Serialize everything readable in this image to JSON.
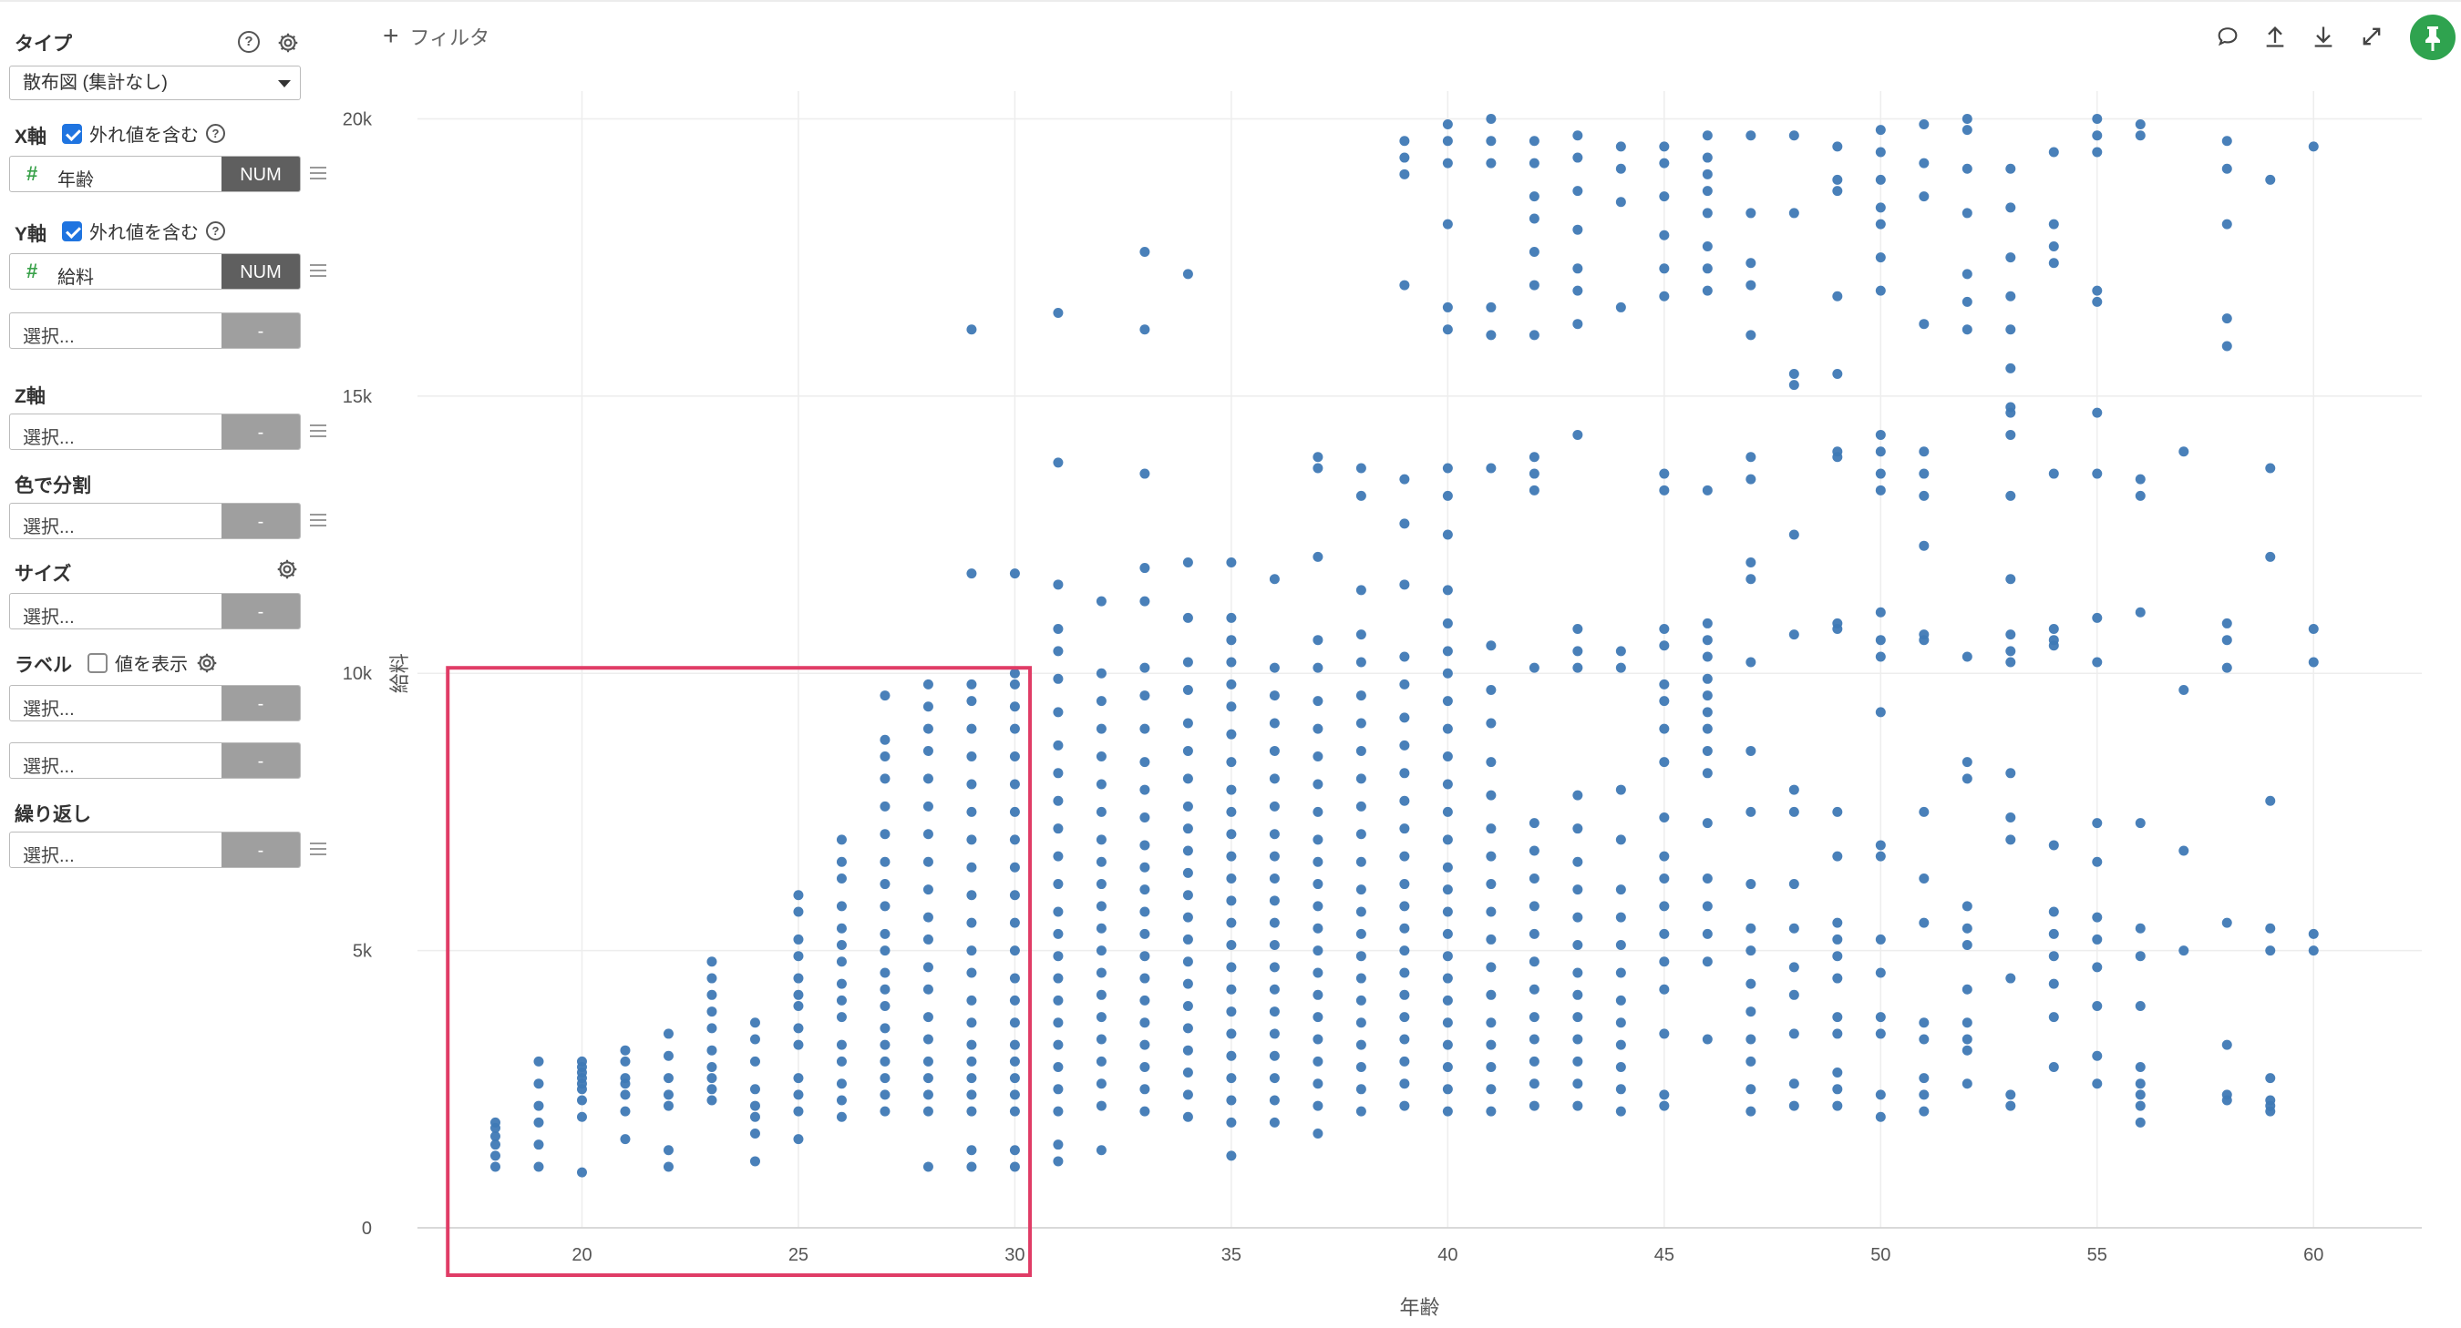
{
  "sidebar": {
    "type_section": {
      "label": "タイプ",
      "selected": "散布図 (集計なし)"
    },
    "x_axis": {
      "label": "X軸",
      "outlier_label": "外れ値を含む",
      "outlier_checked": true,
      "field_name": "年齢",
      "field_type": "NUM"
    },
    "y_axis": {
      "label": "Y軸",
      "outlier_label": "外れ値を含む",
      "outlier_checked": true,
      "field_name": "給料",
      "field_type": "NUM",
      "extra_placeholder": "選択...",
      "extra_tag": "-"
    },
    "z_axis": {
      "label": "Z軸",
      "placeholder": "選択...",
      "tag": "-"
    },
    "color_split": {
      "label": "色で分割",
      "placeholder": "選択...",
      "tag": "-"
    },
    "size": {
      "label": "サイズ",
      "placeholder": "選択...",
      "tag": "-"
    },
    "label_section": {
      "label": "ラベル",
      "show_values_label": "値を表示",
      "show_values_checked": false,
      "placeholder1": "選択...",
      "tag1": "-",
      "placeholder2": "選択...",
      "tag2": "-"
    },
    "repeat": {
      "label": "繰り返し",
      "placeholder": "選択...",
      "tag": "-"
    }
  },
  "header": {
    "filter_label": "フィルタ",
    "icons": [
      "comment-icon",
      "upload-icon",
      "download-icon",
      "expand-icon",
      "pin-icon"
    ],
    "accent_color": "#2fa34f"
  },
  "chart_data": {
    "type": "scatter",
    "xlabel": "年齢",
    "ylabel": "給料",
    "xlim": [
      16.2,
      62.5
    ],
    "ylim": [
      0,
      20500
    ],
    "x_ticks": [
      20,
      25,
      30,
      35,
      40,
      45,
      50,
      55,
      60
    ],
    "y_ticks": [
      0,
      5000,
      10000,
      15000,
      20000
    ],
    "y_tick_labels": [
      "0",
      "5k",
      "10k",
      "15k",
      "20k"
    ],
    "point_color": "#3f79b5",
    "grid": true,
    "highlight": {
      "x_range": [
        18,
        30
      ],
      "y_range": [
        0,
        10000
      ],
      "color": "#e03c66"
    },
    "series": [
      {
        "x": 18,
        "y": [
          1100,
          1300,
          1500,
          1650,
          1800,
          1900
        ]
      },
      {
        "x": 19,
        "y": [
          1100,
          1500,
          1900,
          2200,
          2600,
          3000
        ]
      },
      {
        "x": 20,
        "y": [
          1000,
          2000,
          2300,
          2500,
          2600,
          2700,
          2800,
          2900,
          3000
        ]
      },
      {
        "x": 21,
        "y": [
          1600,
          2100,
          2400,
          2600,
          2700,
          3000,
          3200
        ]
      },
      {
        "x": 22,
        "y": [
          1100,
          1400,
          2200,
          2400,
          2700,
          3100,
          3500
        ]
      },
      {
        "x": 23,
        "y": [
          2300,
          2500,
          2700,
          2900,
          3200,
          3600,
          3900,
          4200,
          4500,
          4800
        ]
      },
      {
        "x": 24,
        "y": [
          1200,
          1700,
          2000,
          2200,
          2500,
          3000,
          3400,
          3700
        ]
      },
      {
        "x": 25,
        "y": [
          1600,
          2100,
          2400,
          2700,
          3300,
          3600,
          4000,
          4200,
          4500,
          4900,
          5200,
          5700,
          6000
        ]
      },
      {
        "x": 26,
        "y": [
          2000,
          2300,
          2600,
          3000,
          3300,
          3800,
          4100,
          4400,
          4800,
          5100,
          5400,
          5800,
          6300,
          6600,
          7000
        ]
      },
      {
        "x": 27,
        "y": [
          2100,
          2400,
          2700,
          3000,
          3300,
          3600,
          4000,
          4300,
          4600,
          5000,
          5300,
          5800,
          6200,
          6600,
          7100,
          7600,
          8100,
          8500,
          8800,
          9600
        ]
      },
      {
        "x": 28,
        "y": [
          1100,
          2100,
          2400,
          2700,
          3000,
          3400,
          3800,
          4300,
          4700,
          5200,
          5600,
          6100,
          6600,
          7100,
          7600,
          8100,
          8600,
          9000,
          9400,
          9800
        ]
      },
      {
        "x": 29,
        "y": [
          1100,
          1400,
          2100,
          2400,
          2700,
          3000,
          3300,
          3700,
          4100,
          4600,
          5000,
          5500,
          6000,
          6500,
          7000,
          7500,
          8000,
          8500,
          9000,
          9500,
          9800,
          11800,
          16200
        ]
      },
      {
        "x": 30,
        "y": [
          1100,
          1400,
          2100,
          2400,
          2700,
          3000,
          3300,
          3700,
          4100,
          4500,
          5000,
          5500,
          6000,
          6500,
          7000,
          7500,
          8000,
          8500,
          9000,
          9400,
          9800,
          10000,
          11800
        ]
      },
      {
        "x": 31,
        "y": [
          1200,
          1500,
          2100,
          2500,
          2900,
          3300,
          3700,
          4100,
          4500,
          4900,
          5300,
          5700,
          6200,
          6700,
          7200,
          7700,
          8200,
          8700,
          9300,
          9900,
          10400,
          10800,
          11600,
          13800,
          16500
        ]
      },
      {
        "x": 32,
        "y": [
          1400,
          2200,
          2600,
          3000,
          3400,
          3800,
          4200,
          4600,
          5000,
          5400,
          5800,
          6200,
          6600,
          7000,
          7500,
          8000,
          8500,
          9000,
          9500,
          10000,
          11300
        ]
      },
      {
        "x": 33,
        "y": [
          2100,
          2500,
          2900,
          3300,
          3700,
          4100,
          4500,
          4900,
          5300,
          5700,
          6100,
          6500,
          6900,
          7400,
          7900,
          8400,
          9000,
          9600,
          10100,
          11300,
          11900,
          13600,
          16200,
          17600
        ]
      },
      {
        "x": 34,
        "y": [
          2000,
          2400,
          2800,
          3200,
          3600,
          4000,
          4400,
          4800,
          5200,
          5600,
          6000,
          6400,
          6800,
          7200,
          7600,
          8100,
          8600,
          9100,
          9700,
          10200,
          11000,
          12000,
          17200
        ]
      },
      {
        "x": 35,
        "y": [
          1300,
          1900,
          2300,
          2700,
          3100,
          3500,
          3900,
          4300,
          4700,
          5100,
          5500,
          5900,
          6300,
          6700,
          7100,
          7500,
          7900,
          8400,
          8900,
          9400,
          9800,
          10200,
          10600,
          11000,
          12000
        ]
      },
      {
        "x": 36,
        "y": [
          1900,
          2300,
          2700,
          3100,
          3500,
          3900,
          4300,
          4700,
          5100,
          5500,
          5900,
          6300,
          6700,
          7100,
          7600,
          8100,
          8600,
          9100,
          9600,
          10100,
          11700
        ]
      },
      {
        "x": 37,
        "y": [
          1700,
          2200,
          2600,
          3000,
          3400,
          3800,
          4200,
          4600,
          5000,
          5400,
          5800,
          6200,
          6600,
          7000,
          7500,
          8000,
          8500,
          9000,
          9500,
          10100,
          10600,
          12100,
          13700,
          13900
        ]
      },
      {
        "x": 38,
        "y": [
          2100,
          2500,
          2900,
          3300,
          3700,
          4100,
          4500,
          4900,
          5300,
          5700,
          6100,
          6600,
          7100,
          7600,
          8100,
          8600,
          9100,
          9600,
          10200,
          10700,
          11500,
          13200,
          13700
        ]
      },
      {
        "x": 39,
        "y": [
          2200,
          2600,
          3000,
          3400,
          3800,
          4200,
          4600,
          5000,
          5400,
          5800,
          6200,
          6700,
          7200,
          7700,
          8200,
          8700,
          9200,
          9800,
          10300,
          11600,
          12700,
          13500,
          17000,
          19000,
          19300,
          19600
        ]
      },
      {
        "x": 40,
        "y": [
          2100,
          2500,
          2900,
          3300,
          3700,
          4100,
          4500,
          4900,
          5300,
          5700,
          6100,
          6500,
          7000,
          7500,
          8000,
          8500,
          9000,
          9500,
          10000,
          10400,
          10900,
          11500,
          12500,
          13200,
          13700,
          16200,
          16600,
          18100,
          19200,
          19600,
          19900
        ]
      },
      {
        "x": 41,
        "y": [
          2100,
          2500,
          2900,
          3300,
          3700,
          4200,
          4700,
          5200,
          5700,
          6200,
          6700,
          7200,
          7800,
          8400,
          9100,
          9700,
          10500,
          13700,
          16100,
          16600,
          19200,
          19600,
          20000
        ]
      },
      {
        "x": 42,
        "y": [
          2200,
          2600,
          3000,
          3400,
          3800,
          4300,
          4800,
          5300,
          5800,
          6300,
          6800,
          7300,
          10100,
          13300,
          13600,
          13900,
          16100,
          17000,
          17600,
          18200,
          18600,
          19200,
          19600
        ]
      },
      {
        "x": 43,
        "y": [
          2200,
          2600,
          3000,
          3400,
          3800,
          4200,
          4600,
          5100,
          5600,
          6100,
          6600,
          7200,
          7800,
          10100,
          10400,
          10800,
          14300,
          16300,
          16900,
          17300,
          18000,
          18700,
          19300,
          19700
        ]
      },
      {
        "x": 44,
        "y": [
          2100,
          2500,
          2900,
          3300,
          3700,
          4100,
          4600,
          5100,
          5600,
          6100,
          7000,
          7900,
          10100,
          10400,
          16600,
          18500,
          19100,
          19500
        ]
      },
      {
        "x": 45,
        "y": [
          2200,
          2400,
          3500,
          4300,
          4800,
          5300,
          5800,
          6300,
          6700,
          7400,
          8400,
          9000,
          9500,
          9800,
          10500,
          10800,
          13300,
          13600,
          16800,
          17300,
          17900,
          18600,
          19200,
          19500
        ]
      },
      {
        "x": 46,
        "y": [
          3400,
          4800,
          5300,
          5800,
          6300,
          7300,
          8200,
          8600,
          9000,
          9300,
          9600,
          9900,
          10300,
          10600,
          10900,
          13300,
          16900,
          17300,
          17700,
          18300,
          18700,
          19000,
          19300,
          19700
        ]
      },
      {
        "x": 47,
        "y": [
          2100,
          2500,
          3000,
          3400,
          3900,
          4400,
          5000,
          5400,
          6200,
          7500,
          8600,
          10200,
          11700,
          12000,
          13500,
          13900,
          16100,
          17000,
          17400,
          18300,
          19700
        ]
      },
      {
        "x": 48,
        "y": [
          2200,
          2600,
          3500,
          4200,
          4700,
          5400,
          6200,
          7500,
          7900,
          10700,
          12500,
          15200,
          15400,
          18300,
          19700
        ]
      },
      {
        "x": 49,
        "y": [
          2200,
          2500,
          2800,
          3500,
          3800,
          4500,
          4900,
          5200,
          5500,
          6700,
          7500,
          10800,
          10900,
          13900,
          14000,
          15400,
          16800,
          18700,
          18900,
          19500
        ]
      },
      {
        "x": 50,
        "y": [
          2000,
          2400,
          3500,
          3800,
          4600,
          5200,
          6700,
          6900,
          9300,
          10300,
          10600,
          11100,
          13300,
          13600,
          14000,
          14300,
          16900,
          17500,
          18100,
          18400,
          18900,
          19400,
          19800
        ]
      },
      {
        "x": 51,
        "y": [
          2100,
          2400,
          2700,
          3400,
          3700,
          5500,
          6300,
          7500,
          10600,
          10700,
          12300,
          13200,
          13600,
          14000,
          16300,
          18600,
          19200,
          19900
        ]
      },
      {
        "x": 52,
        "y": [
          2600,
          3200,
          3400,
          3700,
          4300,
          5100,
          5400,
          5800,
          8100,
          8400,
          10300,
          16200,
          16700,
          17200,
          18300,
          19100,
          19800,
          20000
        ]
      },
      {
        "x": 53,
        "y": [
          2200,
          2400,
          4500,
          7000,
          7400,
          8200,
          10200,
          10400,
          10700,
          11700,
          13200,
          14300,
          14700,
          14800,
          15500,
          16200,
          16800,
          17500,
          18400,
          19100
        ]
      },
      {
        "x": 54,
        "y": [
          2900,
          3800,
          4400,
          4900,
          5300,
          5700,
          6900,
          10500,
          10600,
          10800,
          13600,
          17400,
          17700,
          18100,
          19400
        ]
      },
      {
        "x": 55,
        "y": [
          2600,
          3100,
          4000,
          4700,
          5200,
          5600,
          6600,
          7300,
          10200,
          11000,
          13600,
          14700,
          16700,
          16900,
          19400,
          19700,
          20000
        ]
      },
      {
        "x": 56,
        "y": [
          1900,
          2200,
          2400,
          2600,
          2900,
          4000,
          4900,
          5400,
          7300,
          11100,
          13200,
          13500,
          19700,
          19900
        ]
      },
      {
        "x": 57,
        "y": [
          5000,
          6800,
          9700,
          14000
        ]
      },
      {
        "x": 58,
        "y": [
          2300,
          2400,
          3300,
          5500,
          10100,
          10600,
          10900,
          15900,
          16400,
          18100,
          19100,
          19600
        ]
      },
      {
        "x": 59,
        "y": [
          2100,
          2200,
          2300,
          2700,
          5000,
          5400,
          7700,
          12100,
          13700,
          18900
        ]
      },
      {
        "x": 60,
        "y": [
          5000,
          5300,
          10200,
          10800,
          19500
        ]
      }
    ]
  }
}
